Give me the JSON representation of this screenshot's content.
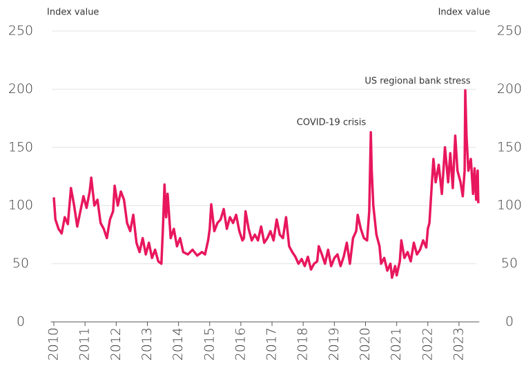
{
  "chart_data": {
    "type": "line",
    "y_label": "Index value",
    "y2_label": "Index value",
    "annotations": [
      "COVID-19 crisis",
      "US regional bank stress"
    ],
    "xlim": [
      2009.9,
      2023.65
    ],
    "xticks": [
      2010,
      2011,
      2012,
      2013,
      2014,
      2015,
      2016,
      2017,
      2018,
      2019,
      2020,
      2021,
      2022,
      2023
    ],
    "ylim": [
      0,
      250
    ],
    "yticks": [
      0,
      50,
      100,
      150,
      200,
      250
    ],
    "y2lim": [
      0,
      250
    ],
    "y2ticks": [
      0,
      50,
      100,
      150,
      200,
      250
    ],
    "grid": true,
    "series": [
      {
        "color": "#e8175d",
        "x": [
          2010.0,
          2010.05,
          2010.15,
          2010.25,
          2010.35,
          2010.45,
          2010.55,
          2010.65,
          2010.75,
          2010.85,
          2010.95,
          2011.05,
          2011.15,
          2011.2,
          2011.3,
          2011.4,
          2011.5,
          2011.6,
          2011.7,
          2011.8,
          2011.9,
          2011.95,
          2012.05,
          2012.15,
          2012.25,
          2012.35,
          2012.45,
          2012.55,
          2012.65,
          2012.75,
          2012.85,
          2012.95,
          2013.05,
          2013.15,
          2013.25,
          2013.35,
          2013.45,
          2013.5,
          2013.55,
          2013.6,
          2013.65,
          2013.75,
          2013.85,
          2013.95,
          2014.05,
          2014.15,
          2014.3,
          2014.45,
          2014.6,
          2014.75,
          2014.85,
          2014.95,
          2015.0,
          2015.05,
          2015.15,
          2015.25,
          2015.35,
          2015.45,
          2015.55,
          2015.65,
          2015.75,
          2015.85,
          2015.95,
          2016.05,
          2016.1,
          2016.15,
          2016.25,
          2016.35,
          2016.45,
          2016.55,
          2016.65,
          2016.75,
          2016.85,
          2016.95,
          2017.05,
          2017.15,
          2017.25,
          2017.35,
          2017.45,
          2017.55,
          2017.65,
          2017.75,
          2017.85,
          2017.95,
          2018.05,
          2018.15,
          2018.25,
          2018.35,
          2018.45,
          2018.5,
          2018.6,
          2018.7,
          2018.8,
          2018.9,
          2019.0,
          2019.1,
          2019.2,
          2019.3,
          2019.4,
          2019.5,
          2019.6,
          2019.7,
          2019.75,
          2019.85,
          2019.95,
          2020.05,
          2020.12,
          2020.17,
          2020.2,
          2020.25,
          2020.35,
          2020.45,
          2020.5,
          2020.6,
          2020.7,
          2020.8,
          2020.85,
          2020.95,
          2021.0,
          2021.1,
          2021.15,
          2021.25,
          2021.35,
          2021.45,
          2021.55,
          2021.65,
          2021.75,
          2021.85,
          2021.95,
          2022.0,
          2022.05,
          2022.12,
          2022.18,
          2022.25,
          2022.35,
          2022.45,
          2022.55,
          2022.65,
          2022.72,
          2022.8,
          2022.88,
          2022.95,
          2023.05,
          2023.12,
          2023.18,
          2023.2,
          2023.24,
          2023.3,
          2023.38,
          2023.45,
          2023.5,
          2023.55,
          2023.6,
          2023.62
        ],
        "values": [
          107,
          88,
          80,
          76,
          90,
          84,
          115,
          100,
          82,
          95,
          108,
          98,
          112,
          124,
          100,
          105,
          85,
          80,
          72,
          88,
          95,
          117,
          100,
          112,
          105,
          85,
          78,
          92,
          68,
          60,
          72,
          58,
          68,
          55,
          62,
          52,
          50,
          80,
          118,
          90,
          110,
          72,
          80,
          65,
          72,
          60,
          58,
          62,
          57,
          60,
          58,
          70,
          80,
          101,
          78,
          85,
          88,
          97,
          80,
          90,
          85,
          92,
          78,
          70,
          72,
          95,
          80,
          70,
          75,
          70,
          82,
          68,
          72,
          78,
          70,
          88,
          75,
          72,
          90,
          65,
          60,
          56,
          50,
          54,
          48,
          56,
          45,
          50,
          52,
          65,
          58,
          50,
          62,
          48,
          55,
          58,
          48,
          56,
          68,
          50,
          72,
          78,
          92,
          80,
          72,
          70,
          95,
          163,
          130,
          100,
          75,
          65,
          50,
          55,
          44,
          50,
          38,
          48,
          40,
          52,
          70,
          55,
          60,
          52,
          68,
          58,
          62,
          70,
          64,
          80,
          85,
          115,
          140,
          120,
          135,
          110,
          150,
          120,
          145,
          115,
          160,
          130,
          120,
          108,
          130,
          199,
          160,
          130,
          140,
          110,
          132,
          105,
          130,
          102
        ]
      }
    ]
  }
}
